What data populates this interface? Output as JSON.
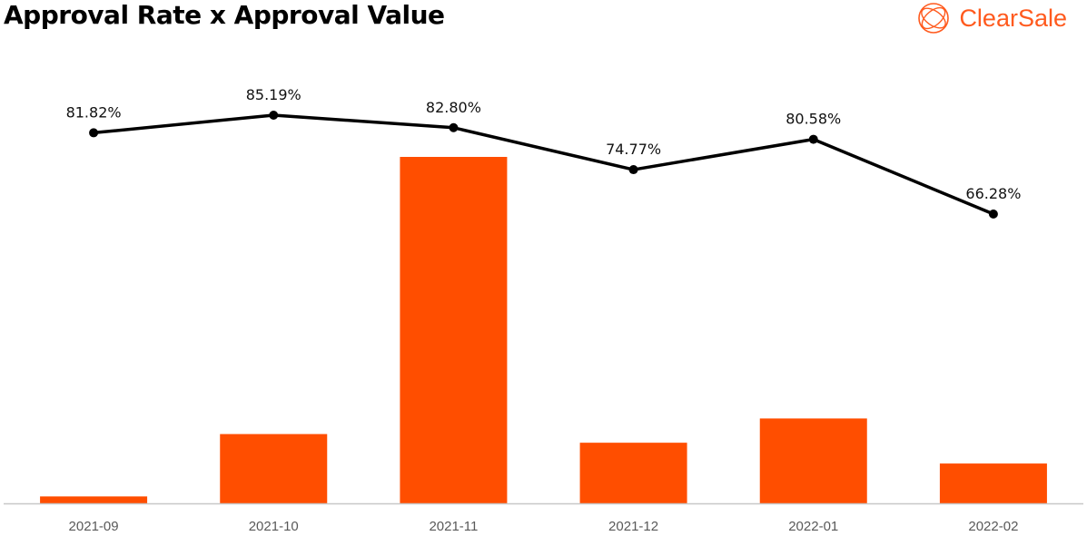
{
  "header": {
    "title": "Approval Rate x Approval Value",
    "brand": "ClearSale"
  },
  "colors": {
    "bar": "#ff4e00",
    "line": "#000000",
    "axis": "#c8c8c8",
    "brand": "#ff5a1e"
  },
  "chart_data": {
    "type": "bar+line",
    "title": "Approval Rate x Approval Value",
    "categories": [
      "2021-09",
      "2021-10",
      "2021-11",
      "2021-12",
      "2022-01",
      "2022-02"
    ],
    "series": [
      {
        "name": "Approval Value",
        "type": "bar",
        "values": [
          2,
          20,
          100,
          17.5,
          24.5,
          11.5
        ]
      },
      {
        "name": "Approval Rate",
        "type": "line",
        "values": [
          81.82,
          85.19,
          82.8,
          74.77,
          80.58,
          66.28
        ],
        "labels": [
          "81.82%",
          "85.19%",
          "82.80%",
          "74.77%",
          "80.58%",
          "66.28%"
        ]
      }
    ],
    "bar_ylim": [
      0,
      100
    ],
    "line_ylim": [
      0,
      88
    ],
    "legend": "none",
    "grid": false
  }
}
